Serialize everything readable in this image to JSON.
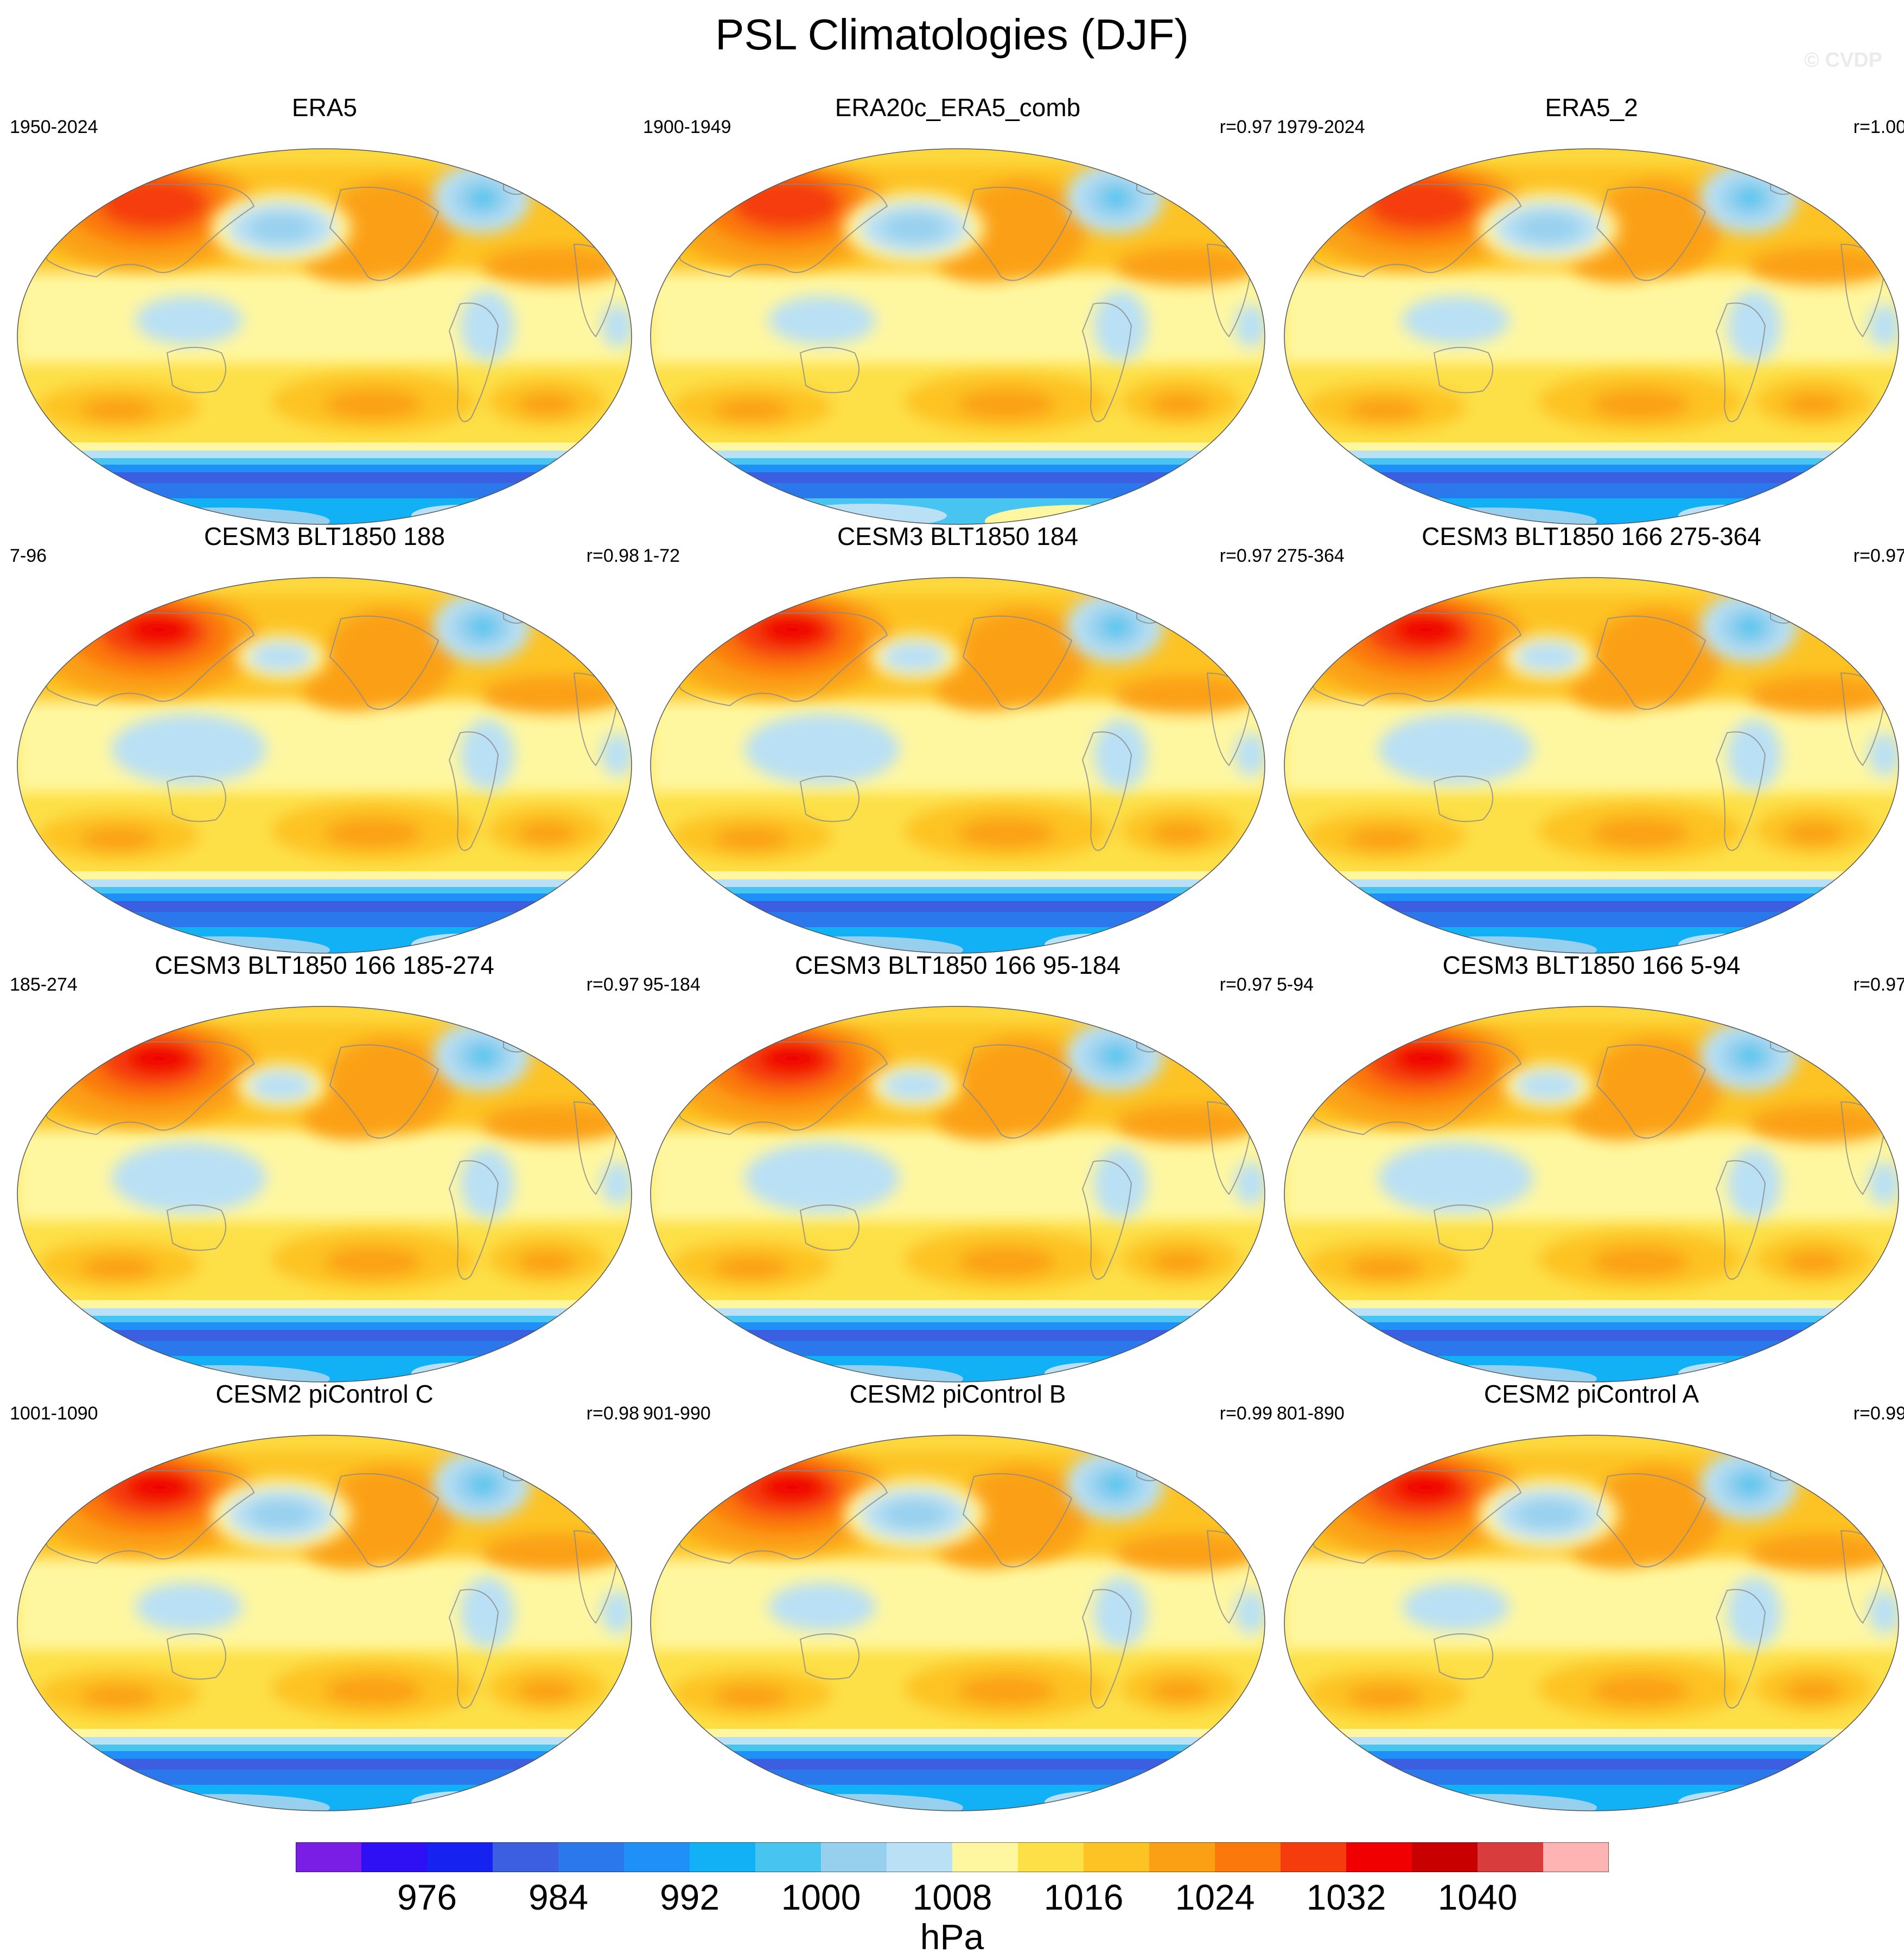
{
  "title": "PSL Climatologies (DJF)",
  "watermark": "© CVDP",
  "panels": [
    {
      "title": "ERA5",
      "period": "1950-2024",
      "corr": "",
      "variant": "obs"
    },
    {
      "title": "ERA20c_ERA5_comb",
      "period": "1900-1949",
      "corr": "r=0.97",
      "variant": "obs2"
    },
    {
      "title": "ERA5_2",
      "period": "1979-2024",
      "corr": "r=1.00",
      "variant": "obs"
    },
    {
      "title": "CESM3 BLT1850 188",
      "period": "7-96",
      "corr": "r=0.98",
      "variant": "cesm3"
    },
    {
      "title": "CESM3 BLT1850 184",
      "period": "1-72",
      "corr": "r=0.97",
      "variant": "cesm3"
    },
    {
      "title": "CESM3 BLT1850 166 275-364",
      "period": "275-364",
      "corr": "r=0.97",
      "variant": "cesm3"
    },
    {
      "title": "CESM3 BLT1850 166 185-274",
      "period": "185-274",
      "corr": "r=0.97",
      "variant": "cesm3"
    },
    {
      "title": "CESM3 BLT1850 166 95-184",
      "period": "95-184",
      "corr": "r=0.97",
      "variant": "cesm3"
    },
    {
      "title": "CESM3 BLT1850 166 5-94",
      "period": "5-94",
      "corr": "r=0.97",
      "variant": "cesm3"
    },
    {
      "title": "CESM2 piControl C",
      "period": "1001-1090",
      "corr": "r=0.98",
      "variant": "cesm2"
    },
    {
      "title": "CESM2 piControl B",
      "period": "901-990",
      "corr": "r=0.99",
      "variant": "cesm2"
    },
    {
      "title": "CESM2 piControl A",
      "period": "801-890",
      "corr": "r=0.99",
      "variant": "cesm2"
    }
  ],
  "colorbar": {
    "colors": [
      "#7a1ee6",
      "#2f10f5",
      "#1622f0",
      "#3c5ee0",
      "#2a78ec",
      "#1e90f8",
      "#12b0f5",
      "#48c4f0",
      "#96d0ee",
      "#b9e0f5",
      "#fff7a0",
      "#fde047",
      "#fdc324",
      "#fba014",
      "#fb780c",
      "#f53c0c",
      "#f00000",
      "#c80000",
      "#d83c3c",
      "#ffb4b4"
    ],
    "labels": [
      "976",
      "984",
      "992",
      "1000",
      "1008",
      "1016",
      "1024",
      "1032",
      "1040"
    ],
    "unit": "hPa"
  }
}
